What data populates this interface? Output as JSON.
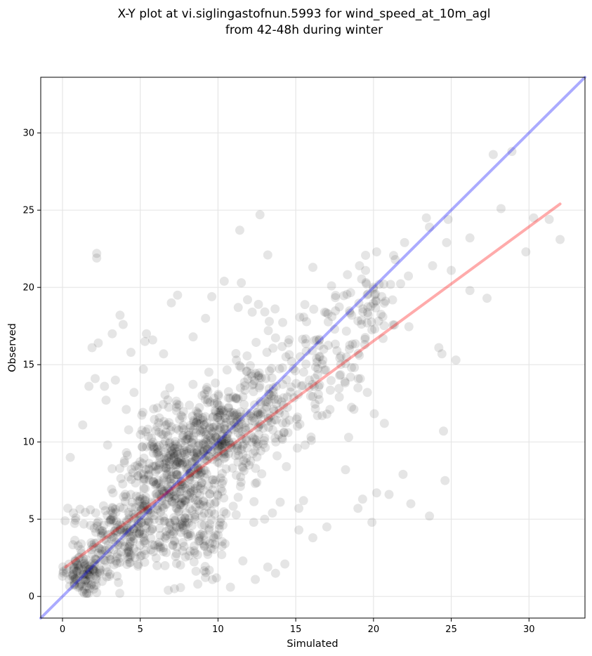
{
  "chart_data": {
    "type": "scatter",
    "title": "X-Y plot at vi.siglingastofnun.5993 for wind_speed_at_10m_agl",
    "subtitle": "from 42-48h during winter",
    "xlabel": "Simulated",
    "ylabel": "Observed",
    "xlim": [
      -1.4,
      33.6
    ],
    "ylim": [
      -1.4,
      33.6
    ],
    "xticks": [
      0,
      5,
      10,
      15,
      20,
      25,
      30
    ],
    "yticks": [
      0,
      5,
      10,
      15,
      20,
      25,
      30
    ],
    "grid": true,
    "series": [
      {
        "kind": "points",
        "color": "#000000",
        "opacity": 0.1,
        "x": [
          2.2,
          2.2,
          11.4,
          12.7,
          13.2,
          16.1,
          17.3,
          19.1,
          20.2,
          21.4,
          22.0,
          23.4,
          23.6,
          24.8,
          26.2,
          27.7,
          28.2,
          28.9,
          30.3,
          31.3,
          32.0,
          29.8,
          23.8,
          24.7,
          25.0,
          26.2,
          27.3,
          24.2,
          24.4,
          25.3,
          24.5,
          21.9,
          20.2,
          19.3,
          18.2,
          15.5,
          15.2,
          14.0,
          13.5,
          13.0,
          12.3,
          12.0,
          13.8,
          14.5,
          15.6,
          16.4,
          17.2,
          18.4,
          20.7,
          19.0,
          17.8,
          17.0,
          16.0,
          15.1,
          14.4,
          3.7,
          3.9,
          3.2,
          1.9,
          2.3,
          1.7,
          2.1,
          2.8,
          0.5,
          1.3,
          2.7,
          5.4,
          5.3,
          6.5,
          7.0,
          7.4,
          8.4,
          9.2,
          9.6,
          10.4,
          11.3,
          11.5,
          11.9,
          12.2,
          12.6,
          13.3,
          1.8,
          1.2,
          1.4,
          2.4,
          3.6,
          3.0,
          1.1,
          2.5,
          6.8,
          7.2,
          8.7,
          9.9,
          10.8,
          11.6,
          12.4,
          13.2,
          13.7,
          14.3,
          15.2,
          16.1,
          17.0,
          19.0,
          19.9,
          21.0,
          22.4,
          23.6,
          24.6,
          4.1,
          4.6,
          3.4,
          5.2,
          6.1,
          6.9,
          4.4,
          5.8,
          0.7,
          2.9,
          17.5,
          18.6,
          16.8
        ],
        "y": [
          22.2,
          21.9,
          23.7,
          24.7,
          22.1,
          21.3,
          20.1,
          21.4,
          22.3,
          21.8,
          22.9,
          24.5,
          23.9,
          24.4,
          23.2,
          28.6,
          25.1,
          28.8,
          24.5,
          24.4,
          23.1,
          22.3,
          21.4,
          22.9,
          21.1,
          19.8,
          19.3,
          16.1,
          15.7,
          15.3,
          10.7,
          7.9,
          6.7,
          6.3,
          8.2,
          6.2,
          5.7,
          6.1,
          5.4,
          5.0,
          4.8,
          8.5,
          9.1,
          10.6,
          9.8,
          11.7,
          12.1,
          10.3,
          11.2,
          13.5,
          12.9,
          11.8,
          10.1,
          9.6,
          8.4,
          18.2,
          17.6,
          17.0,
          16.1,
          16.4,
          13.6,
          14.1,
          12.7,
          9.0,
          11.1,
          13.6,
          17.0,
          16.5,
          15.7,
          19.0,
          19.5,
          16.8,
          18.0,
          19.4,
          20.4,
          18.7,
          20.3,
          19.2,
          18.4,
          18.9,
          17.8,
          4.6,
          3.4,
          2.1,
          1.5,
          0.9,
          1.3,
          0.7,
          4.1,
          0.4,
          0.5,
          0.8,
          1.2,
          0.6,
          2.3,
          1.1,
          1.9,
          1.5,
          2.1,
          4.3,
          3.8,
          4.5,
          5.7,
          4.8,
          6.6,
          6.0,
          5.2,
          7.5,
          12.1,
          13.2,
          14.0,
          14.7,
          12.2,
          13.5,
          15.8,
          16.6,
          5.4,
          9.8,
          17.3,
          18.2,
          16.0
        ]
      },
      {
        "kind": "line",
        "color": "#0000ff",
        "opacity": 0.33,
        "x": [
          -1.4,
          33.6
        ],
        "y": [
          -1.4,
          33.6
        ]
      },
      {
        "kind": "line",
        "color": "#ff0000",
        "opacity": 0.33,
        "x": [
          0.2,
          32.0
        ],
        "y": [
          1.9,
          25.4
        ]
      }
    ]
  }
}
